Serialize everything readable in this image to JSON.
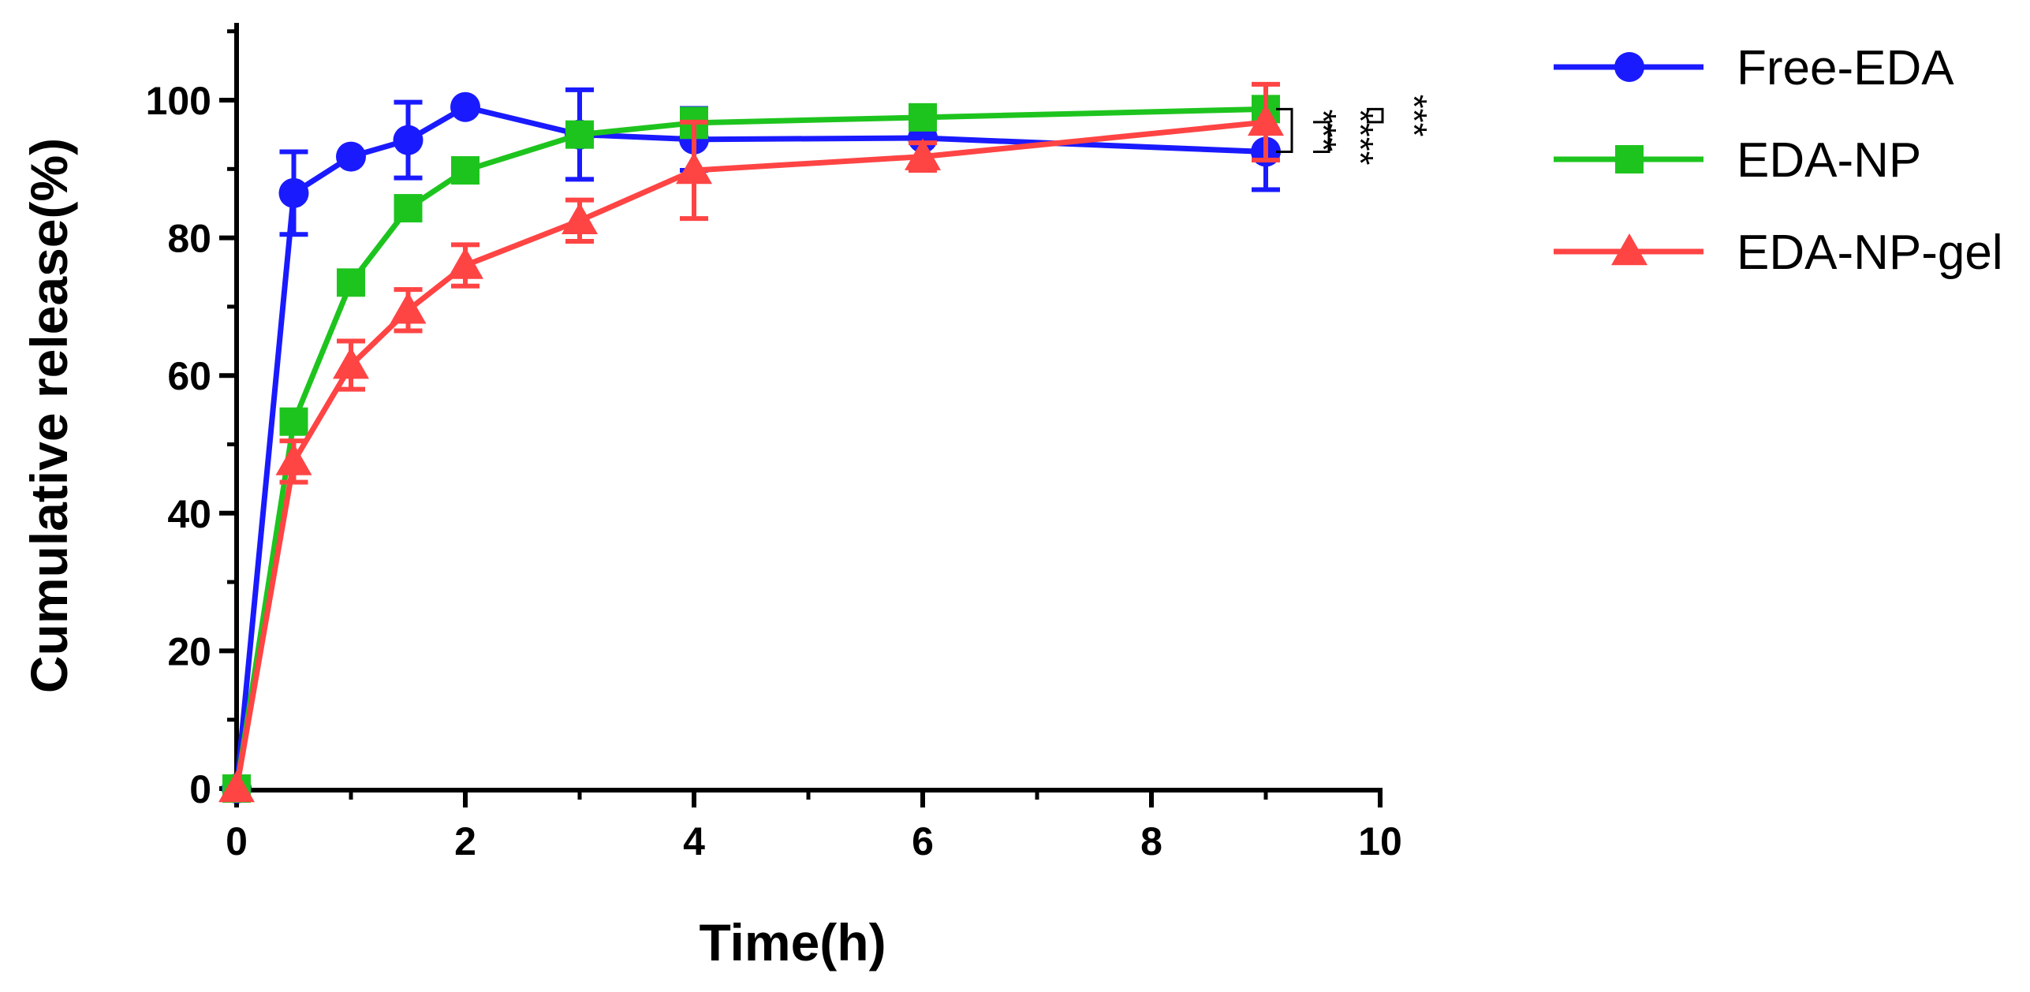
{
  "chart_data": {
    "type": "line",
    "title": "",
    "xlabel": "Time(h)",
    "ylabel": "Cumulative release(%)",
    "xlim": [
      0,
      10
    ],
    "ylim": [
      0,
      110
    ],
    "xticks": [
      0,
      2,
      4,
      6,
      8,
      10
    ],
    "yticks": [
      0,
      20,
      40,
      60,
      80,
      100
    ],
    "xtick_labels": [
      "0",
      "2",
      "4",
      "6",
      "8",
      "10"
    ],
    "ytick_labels": [
      "0",
      "20",
      "40",
      "60",
      "80",
      "100"
    ],
    "grid": false,
    "legend_position": "right-top",
    "series": [
      {
        "name": "Free-EDA",
        "color": "#1a1aff",
        "marker": "circle",
        "x": [
          0,
          0.5,
          1,
          1.5,
          2,
          3,
          4,
          6,
          9
        ],
        "y": [
          0,
          86.5,
          91.8,
          94.2,
          99.0,
          95.0,
          94.3,
          94.5,
          92.5
        ],
        "err": [
          0,
          6.0,
          0,
          5.5,
          0,
          6.5,
          4.5,
          4.0,
          5.5
        ]
      },
      {
        "name": "EDA-NP",
        "color": "#1ec41e",
        "marker": "square",
        "x": [
          0,
          0.5,
          1,
          1.5,
          2,
          3,
          4,
          6,
          9
        ],
        "y": [
          0,
          53.3,
          73.5,
          84.3,
          89.8,
          95.0,
          96.7,
          97.5,
          98.7
        ],
        "err": [
          0,
          0,
          0,
          0,
          0,
          1.5,
          2.0,
          1.5,
          1.5
        ]
      },
      {
        "name": "EDA-NP-gel",
        "color": "#ff4444",
        "marker": "triangle",
        "x": [
          0,
          0.5,
          1,
          1.5,
          2,
          3,
          4,
          6,
          9
        ],
        "y": [
          0,
          47.5,
          61.5,
          69.5,
          76.0,
          82.5,
          89.8,
          91.8,
          96.8
        ],
        "err": [
          0,
          3.0,
          3.5,
          3.0,
          3.0,
          3.0,
          7.0,
          2.0,
          5.5
        ]
      }
    ],
    "annotations": [
      {
        "text": "***",
        "between": [
          "Free-EDA",
          "EDA-NP"
        ]
      },
      {
        "text": "****",
        "between": [
          "Free-EDA",
          "EDA-NP-gel"
        ]
      },
      {
        "text": "***",
        "between": [
          "EDA-NP",
          "EDA-NP-gel"
        ]
      }
    ]
  }
}
